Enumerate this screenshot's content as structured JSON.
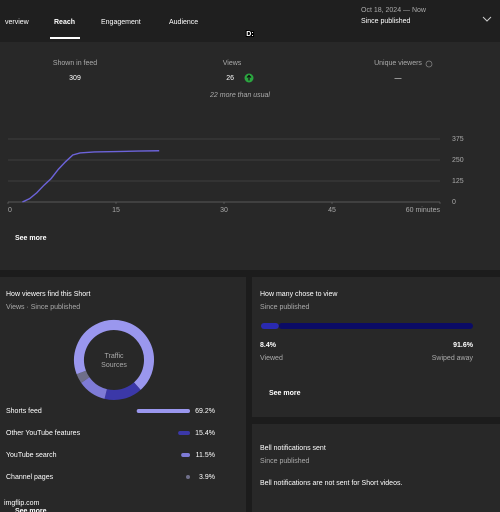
{
  "tabs": [
    "verview",
    "Reach",
    "Engagement",
    "Audience"
  ],
  "date_range": {
    "range": "Oct 18, 2024 — Now",
    "label": "Since published"
  },
  "meme_caption": "D:",
  "metrics": [
    {
      "label": "Shown in feed",
      "value": 309
    },
    {
      "label": "Views",
      "value": 26,
      "note": "22 more than usual"
    },
    {
      "label": "Unique viewers",
      "value": "—"
    }
  ],
  "views_chart": {
    "type": "line",
    "x": [
      2,
      3,
      4,
      5,
      6,
      7,
      8,
      9,
      10,
      12,
      15,
      18,
      21
    ],
    "values": [
      0,
      20,
      55,
      100,
      140,
      195,
      240,
      280,
      292,
      298,
      300,
      303,
      305
    ],
    "xlim": [
      0,
      60
    ],
    "xticks": [
      0,
      15,
      30,
      45,
      {
        "value": 60,
        "label": "60 minutes"
      }
    ],
    "ylim": [
      0,
      375
    ],
    "yticks": [
      0,
      125,
      250,
      375
    ],
    "color": "#6c63d9",
    "grid": true
  },
  "reach_see_more": "See more",
  "traffic": {
    "title": "How viewers find this Short",
    "subtitle": "Views · Since published",
    "center_label": [
      "Traffic",
      "Sources"
    ],
    "sources": [
      {
        "name": "Shorts feed",
        "value": 69.2,
        "label": "69.2%",
        "color": "#9a97ee"
      },
      {
        "name": "Other YouTube features",
        "value": 15.4,
        "label": "15.4%",
        "color": "#3b38a8"
      },
      {
        "name": "YouTube search",
        "value": 11.5,
        "label": "11.5%",
        "color": "#7e7bd6"
      },
      {
        "name": "Channel pages",
        "value": 3.9,
        "label": "3.9%",
        "color": "#6f6f8a"
      }
    ],
    "see_more": "See more"
  },
  "chose": {
    "title": "How many chose to view",
    "subtitle": "Since published",
    "viewed": {
      "name": "Viewed",
      "value": 8.4,
      "label": "8.4%"
    },
    "swiped": {
      "name": "Swiped away",
      "value": 91.6,
      "label": "91.6%"
    },
    "see_more": "See more"
  },
  "bell": {
    "title": "Bell notifications sent",
    "subtitle": "Since published",
    "text": "Bell notifications are not sent for Short videos."
  },
  "watermark": "imgflip.com"
}
